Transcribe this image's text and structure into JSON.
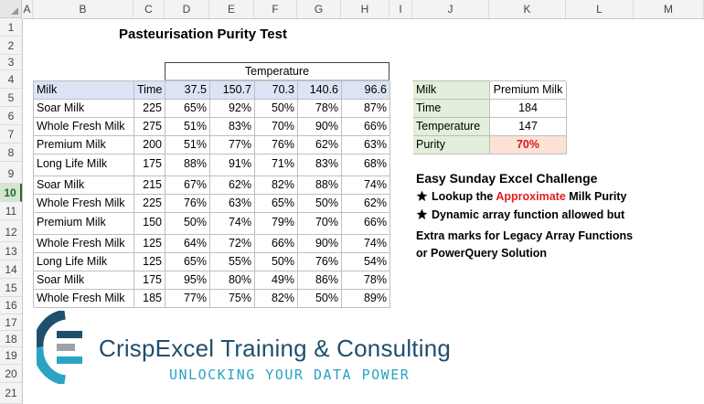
{
  "columns": [
    "A",
    "B",
    "C",
    "D",
    "E",
    "F",
    "G",
    "H",
    "I",
    "J",
    "K",
    "L",
    "M"
  ],
  "rows": [
    "1",
    "2",
    "3",
    "4",
    "5",
    "6",
    "7",
    "8",
    "9",
    "10",
    "11",
    "12",
    "13",
    "14",
    "15",
    "16",
    "17",
    "18",
    "19",
    "20",
    "21"
  ],
  "selected_row": "10",
  "sheet_title": "Pasteurisation Purity Test",
  "temperature_label": "Temperature",
  "table_header": {
    "milk": "Milk",
    "time": "Time",
    "temps": [
      "37.5",
      "150.7",
      "70.3",
      "140.6",
      "96.6"
    ]
  },
  "table_rows": [
    {
      "milk": "Soar Milk",
      "time": "225",
      "vals": [
        "65%",
        "92%",
        "50%",
        "78%",
        "87%"
      ]
    },
    {
      "milk": "Whole Fresh Milk",
      "time": "275",
      "vals": [
        "51%",
        "83%",
        "70%",
        "90%",
        "66%"
      ]
    },
    {
      "milk": "Premium Milk",
      "time": "200",
      "vals": [
        "51%",
        "77%",
        "76%",
        "62%",
        "63%"
      ]
    },
    {
      "milk": "Long Life Milk",
      "time": "175",
      "vals": [
        "88%",
        "91%",
        "71%",
        "83%",
        "68%"
      ]
    },
    {
      "milk": "Soar Milk",
      "time": "215",
      "vals": [
        "67%",
        "62%",
        "82%",
        "88%",
        "74%"
      ]
    },
    {
      "milk": "Whole Fresh Milk",
      "time": "225",
      "vals": [
        "76%",
        "63%",
        "65%",
        "50%",
        "62%"
      ]
    },
    {
      "milk": "Premium Milk",
      "time": "150",
      "vals": [
        "50%",
        "74%",
        "79%",
        "70%",
        "66%"
      ]
    },
    {
      "milk": "Whole Fresh Milk",
      "time": "125",
      "vals": [
        "64%",
        "72%",
        "66%",
        "90%",
        "74%"
      ]
    },
    {
      "milk": "Long Life Milk",
      "time": "125",
      "vals": [
        "65%",
        "55%",
        "50%",
        "76%",
        "54%"
      ]
    },
    {
      "milk": "Soar Milk",
      "time": "175",
      "vals": [
        "95%",
        "80%",
        "49%",
        "86%",
        "78%"
      ]
    },
    {
      "milk": "Whole Fresh Milk",
      "time": "185",
      "vals": [
        "77%",
        "75%",
        "82%",
        "50%",
        "89%"
      ]
    }
  ],
  "lookup": {
    "milk_label": "Milk",
    "milk_value": "Premium Milk",
    "time_label": "Time",
    "time_value": "184",
    "temp_label": "Temperature",
    "temp_value": "147",
    "purity_label": "Purity",
    "purity_value": "70%"
  },
  "challenge": {
    "title": "Easy Sunday Excel Challenge",
    "bullet1_pre": "Lookup the ",
    "bullet1_red": "Approximate",
    "bullet1_post": " Milk Purity",
    "bullet2": "Dynamic array function allowed but",
    "extra1": "Extra marks for Legacy Array Functions",
    "extra2": "or PowerQuery Solution"
  },
  "logo": {
    "name": "CrispExcel Training & Consulting",
    "tagline": "UNLOCKING YOUR DATA POWER",
    "colors": {
      "dark_blue": "#1f4f6e",
      "teal": "#2aa3c4",
      "grey": "#9aa4ab",
      "text": "#1f4f6e"
    }
  }
}
